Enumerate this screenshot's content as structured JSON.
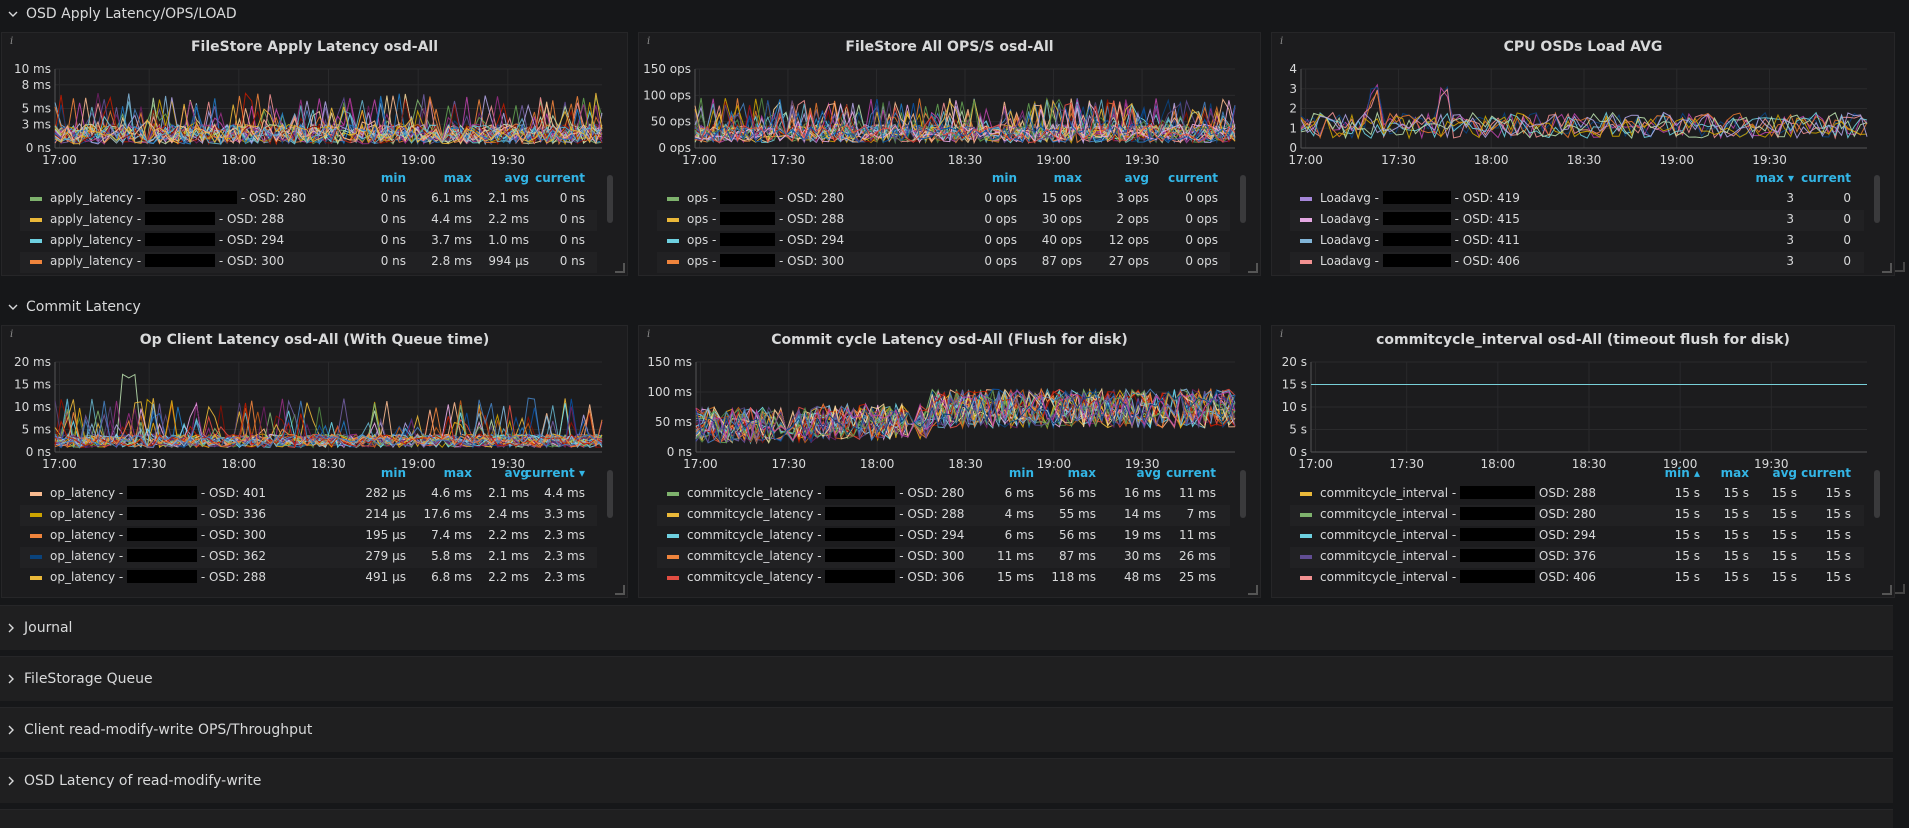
{
  "rows": {
    "osd_apply": "OSD Apply Latency/OPS/LOAD",
    "commit": "Commit Latency",
    "collapsed": [
      "Journal",
      "FileStorage Queue",
      "Client read-modify-write OPS/Throughput",
      "OSD Latency of read-modify-write"
    ]
  },
  "info_glyph": "i",
  "chart_data": [
    {
      "id": "p1",
      "type": "line",
      "title": "FileStore Apply Latency osd-All",
      "yticks": [
        "10 ms",
        "8 ms",
        "5 ms",
        "3 ms",
        "0 ns"
      ],
      "ytick_values": [
        10,
        8,
        5,
        3,
        0
      ],
      "ylim": [
        0,
        10
      ],
      "xticks": [
        "17:00",
        "17:30",
        "18:00",
        "18:30",
        "19:00",
        "19:30"
      ],
      "legend_headers": [
        "min",
        "max",
        "avg",
        "current"
      ],
      "legend": [
        {
          "name": "apply_latency - ",
          "osd": "- OSD: 280",
          "color": "#7eb26d",
          "values": [
            "0 ns",
            "6.1 ms",
            "2.1 ms",
            "0 ns"
          ]
        },
        {
          "name": "apply_latency - ",
          "osd": "- OSD: 288",
          "color": "#eab839",
          "values": [
            "0 ns",
            "4.4 ms",
            "2.2 ms",
            "0 ns"
          ]
        },
        {
          "name": "apply_latency - ",
          "osd": "- OSD: 294",
          "color": "#6ed0e0",
          "values": [
            "0 ns",
            "3.7 ms",
            "1.0 ms",
            "0 ns"
          ]
        },
        {
          "name": "apply_latency - ",
          "osd": "- OSD: 300",
          "color": "#ef843c",
          "values": [
            "0 ns",
            "2.8 ms",
            "994 µs",
            "0 ns"
          ]
        }
      ]
    },
    {
      "id": "p2",
      "type": "line",
      "title": "FileStore All OPS/S osd-All",
      "yticks": [
        "150 ops",
        "100 ops",
        "50 ops",
        "0 ops"
      ],
      "ytick_values": [
        150,
        100,
        50,
        0
      ],
      "ylim": [
        0,
        150
      ],
      "xticks": [
        "17:00",
        "17:30",
        "18:00",
        "18:30",
        "19:00",
        "19:30"
      ],
      "legend_headers": [
        "min",
        "max",
        "avg",
        "current"
      ],
      "legend": [
        {
          "name": "ops - ",
          "osd": "- OSD: 280",
          "color": "#7eb26d",
          "values": [
            "0 ops",
            "15 ops",
            "3 ops",
            "0 ops"
          ]
        },
        {
          "name": "ops - ",
          "osd": "- OSD: 288",
          "color": "#eab839",
          "values": [
            "0 ops",
            "30 ops",
            "2 ops",
            "0 ops"
          ]
        },
        {
          "name": "ops - ",
          "osd": "- OSD: 294",
          "color": "#6ed0e0",
          "values": [
            "0 ops",
            "40 ops",
            "12 ops",
            "0 ops"
          ]
        },
        {
          "name": "ops - ",
          "osd": "- OSD: 300",
          "color": "#ef843c",
          "values": [
            "0 ops",
            "87 ops",
            "27 ops",
            "0 ops"
          ]
        }
      ]
    },
    {
      "id": "p3",
      "type": "line",
      "title": "CPU OSDs Load AVG",
      "yticks": [
        "4",
        "3",
        "2",
        "1",
        "0"
      ],
      "ytick_values": [
        4,
        3,
        2,
        1,
        0
      ],
      "ylim": [
        0,
        4
      ],
      "xticks": [
        "17:00",
        "17:30",
        "18:00",
        "18:30",
        "19:00",
        "19:30"
      ],
      "legend_headers": [
        "max ▾",
        "current"
      ],
      "legend": [
        {
          "name": "Loadavg - ",
          "osd": "- OSD: 419",
          "color": "#a586d9",
          "values": [
            "3",
            "0"
          ]
        },
        {
          "name": "Loadavg - ",
          "osd": "- OSD: 415",
          "color": "#e5a8e2",
          "values": [
            "3",
            "0"
          ]
        },
        {
          "name": "Loadavg - ",
          "osd": "- OSD: 411",
          "color": "#82b5d8",
          "values": [
            "3",
            "0"
          ]
        },
        {
          "name": "Loadavg - ",
          "osd": "- OSD: 406",
          "color": "#f29191",
          "values": [
            "3",
            "0"
          ]
        }
      ]
    },
    {
      "id": "p4",
      "type": "line",
      "title": "Op Client Latency osd-All (With Queue time)",
      "yticks": [
        "20 ms",
        "15 ms",
        "10 ms",
        "5 ms",
        "0 ns"
      ],
      "ytick_values": [
        20,
        15,
        10,
        5,
        0
      ],
      "ylim": [
        0,
        20
      ],
      "xticks": [
        "17:00",
        "17:30",
        "18:00",
        "18:30",
        "19:00",
        "19:30"
      ],
      "legend_headers": [
        "min",
        "max",
        "avg",
        "current ▾"
      ],
      "legend": [
        {
          "name": "op_latency - ",
          "osd": "- OSD: 401",
          "color": "#f9ba8f",
          "values": [
            "282 µs",
            "4.6 ms",
            "2.1 ms",
            "4.4 ms"
          ]
        },
        {
          "name": "op_latency - ",
          "osd": "- OSD: 336",
          "color": "#cca300",
          "values": [
            "214 µs",
            "17.6 ms",
            "2.4 ms",
            "3.3 ms"
          ]
        },
        {
          "name": "op_latency - ",
          "osd": "- OSD: 300",
          "color": "#ef843c",
          "values": [
            "195 µs",
            "7.4 ms",
            "2.2 ms",
            "2.3 ms"
          ]
        },
        {
          "name": "op_latency - ",
          "osd": "- OSD: 362",
          "color": "#0a437c",
          "values": [
            "279 µs",
            "5.8 ms",
            "2.1 ms",
            "2.3 ms"
          ]
        },
        {
          "name": "op_latency - ",
          "osd": "- OSD: 288",
          "color": "#eab839",
          "values": [
            "491 µs",
            "6.8 ms",
            "2.2 ms",
            "2.3 ms"
          ]
        }
      ]
    },
    {
      "id": "p5",
      "type": "line",
      "title": "Commit cycle Latency osd-All (Flush for disk)",
      "yticks": [
        "150 ms",
        "100 ms",
        "50 ms",
        "0 ns"
      ],
      "ytick_values": [
        150,
        100,
        50,
        0
      ],
      "ylim": [
        0,
        150
      ],
      "xticks": [
        "17:00",
        "17:30",
        "18:00",
        "18:30",
        "19:00",
        "19:30"
      ],
      "legend_headers": [
        "min",
        "max",
        "avg",
        "current"
      ],
      "legend": [
        {
          "name": "commitcycle_latency - ",
          "osd": "- OSD: 280",
          "color": "#7eb26d",
          "values": [
            "6 ms",
            "56 ms",
            "16 ms",
            "11 ms"
          ]
        },
        {
          "name": "commitcycle_latency - ",
          "osd": "- OSD: 288",
          "color": "#eab839",
          "values": [
            "4 ms",
            "55 ms",
            "14 ms",
            "7 ms"
          ]
        },
        {
          "name": "commitcycle_latency - ",
          "osd": "- OSD: 294",
          "color": "#6ed0e0",
          "values": [
            "6 ms",
            "56 ms",
            "19 ms",
            "11 ms"
          ]
        },
        {
          "name": "commitcycle_latency - ",
          "osd": "- OSD: 300",
          "color": "#ef843c",
          "values": [
            "11 ms",
            "87 ms",
            "30 ms",
            "26 ms"
          ]
        },
        {
          "name": "commitcycle_latency - ",
          "osd": "- OSD: 306",
          "color": "#e24d42",
          "values": [
            "15 ms",
            "118 ms",
            "48 ms",
            "25 ms"
          ]
        }
      ]
    },
    {
      "id": "p6",
      "type": "line",
      "title": "commitcycle_interval osd-All (timeout flush for disk)",
      "yticks": [
        "20 s",
        "15 s",
        "10 s",
        "5 s",
        "0 s"
      ],
      "ytick_values": [
        20,
        15,
        10,
        5,
        0
      ],
      "ylim": [
        0,
        20
      ],
      "xticks": [
        "17:00",
        "17:30",
        "18:00",
        "18:30",
        "19:00",
        "19:30"
      ],
      "legend_headers": [
        "min ▴",
        "max",
        "avg",
        "current"
      ],
      "legend": [
        {
          "name": "commitcycle_interval - ",
          "osd": "OSD: 288",
          "color": "#eab839",
          "values": [
            "15 s",
            "15 s",
            "15 s",
            "15 s"
          ]
        },
        {
          "name": "commitcycle_interval - ",
          "osd": "OSD: 280",
          "color": "#7eb26d",
          "values": [
            "15 s",
            "15 s",
            "15 s",
            "15 s"
          ]
        },
        {
          "name": "commitcycle_interval - ",
          "osd": "OSD: 294",
          "color": "#6ed0e0",
          "values": [
            "15 s",
            "15 s",
            "15 s",
            "15 s"
          ]
        },
        {
          "name": "commitcycle_interval - ",
          "osd": "OSD: 376",
          "color": "#614d93",
          "values": [
            "15 s",
            "15 s",
            "15 s",
            "15 s"
          ]
        },
        {
          "name": "commitcycle_interval - ",
          "osd": "OSD: 406",
          "color": "#f29191",
          "values": [
            "15 s",
            "15 s",
            "15 s",
            "15 s"
          ]
        }
      ]
    }
  ]
}
